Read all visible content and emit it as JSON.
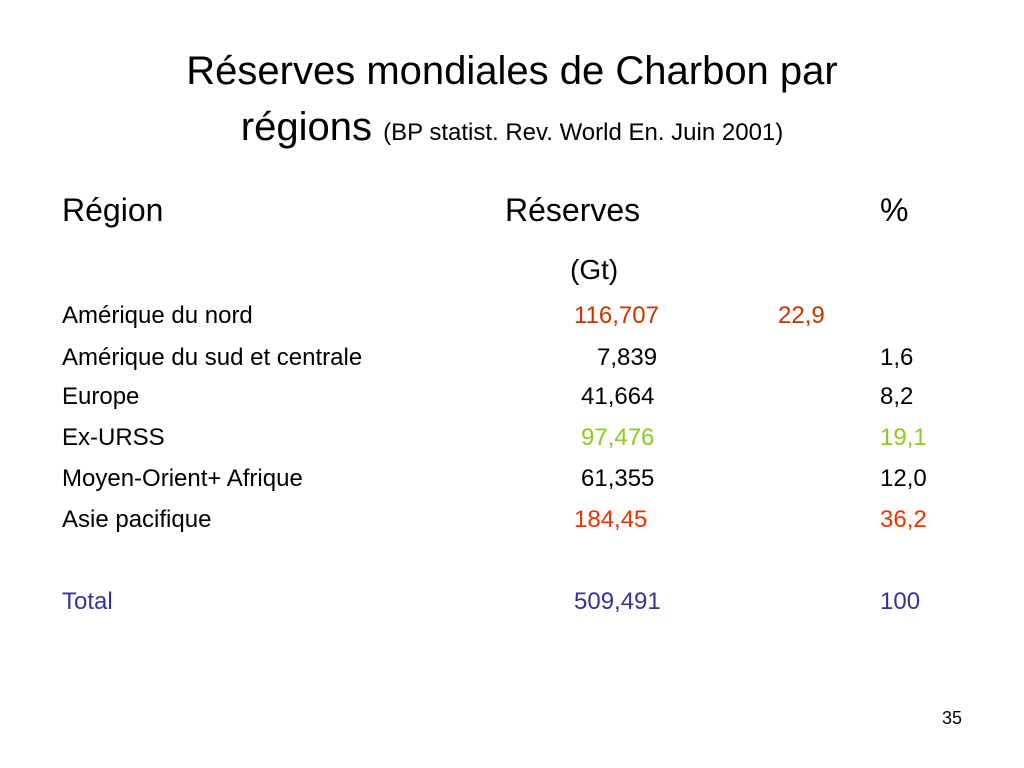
{
  "slide": {
    "title_main": "Réserves mondiales de Charbon par",
    "title_second": "régions",
    "title_source": "(BP statist. Rev. World En. Juin 2001)",
    "page_number": "35"
  },
  "table": {
    "headers": {
      "region": "Région",
      "reserves": "Réserves",
      "percent": "%",
      "unit": "(Gt)"
    },
    "rows": [
      {
        "region": "Amérique du nord",
        "reserves": "116,707",
        "percent": "22,9",
        "region_color": "#000000",
        "value_color": "#cc3300",
        "percent_color": "#cc3300"
      },
      {
        "region": "Amérique du sud et centrale",
        "reserves": "7,839",
        "percent": "1,6",
        "region_color": "#000000",
        "value_color": "#000000",
        "percent_color": "#000000"
      },
      {
        "region": "Europe",
        "reserves": "41,664",
        "percent": "8,2",
        "region_color": "#000000",
        "value_color": "#000000",
        "percent_color": "#000000"
      },
      {
        "region": "Ex-URSS",
        "reserves": "97,476",
        "percent": "19,1",
        "region_color": "#000000",
        "value_color": "#88cc22",
        "percent_color": "#88cc22"
      },
      {
        "region": "Moyen-Orient+ Afrique",
        "reserves": "61,355",
        "percent": "12,0",
        "region_color": "#000000",
        "value_color": "#000000",
        "percent_color": "#000000"
      },
      {
        "region": "Asie pacifique",
        "reserves": "184,45",
        "percent": "36,2",
        "region_color": "#000000",
        "value_color": "#ee3300",
        "percent_color": "#ee3300"
      }
    ],
    "total": {
      "region": "Total",
      "reserves": "509,491",
      "percent": "100",
      "color": "#333399"
    }
  }
}
